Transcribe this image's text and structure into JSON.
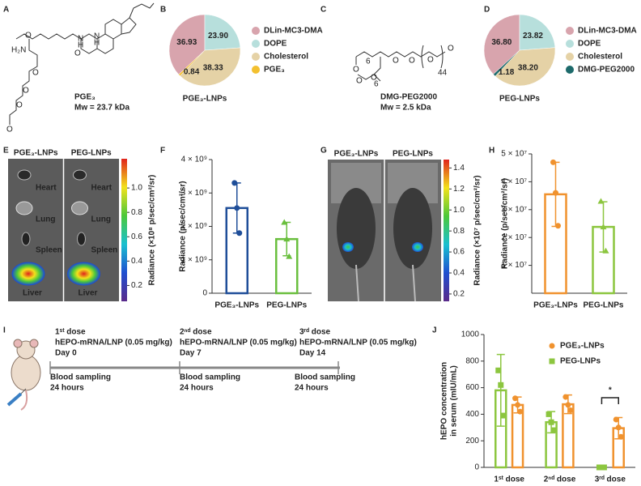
{
  "panels": [
    "A",
    "B",
    "C",
    "D",
    "E",
    "F",
    "G",
    "H",
    "I",
    "J"
  ],
  "structures": [
    {
      "name": "PGE₃",
      "mw": "Mw = 23.7 kDa",
      "atoms": [
        "H₂N",
        "O",
        "N",
        "H",
        "N",
        "H",
        "O",
        "O",
        "O",
        "O",
        "O"
      ]
    },
    {
      "name": "DMG-PEG2000",
      "mw": "Mw = 2.5 kDa",
      "atoms": [
        "O",
        "O",
        "O",
        "O",
        "O",
        "O",
        "O"
      ],
      "subscripts": [
        "6",
        "6",
        "44"
      ]
    }
  ],
  "images": [
    {
      "headers": [
        "PGE₃-LNPs",
        "PEG-LNPs"
      ],
      "organs": [
        "Heart",
        "Lung",
        "Spleen",
        "Liver"
      ],
      "colorbar_label": "Radiance (×10⁸ p/sec/cm²/sr)",
      "colorbar_lim": [
        0.07,
        1.24
      ],
      "colorbar_ticks": [
        0.2,
        0.4,
        0.6,
        0.8,
        {
          "value": 1,
          "label": "1.0"
        }
      ]
    },
    {
      "headers": [
        "PGE₃-LNPs",
        "PEG-LNPs"
      ],
      "colorbar_label": "Radiance (×10⁷ p/sec/cm²/sr)",
      "colorbar_lim": [
        0.13,
        1.48
      ],
      "colorbar_ticks": [
        0.2,
        0.4,
        0.6,
        0.8,
        {
          "value": 1,
          "label": "1.0"
        },
        1.2,
        1.4
      ]
    }
  ],
  "timeline": [
    {
      "dose": "1ˢᵗ dose",
      "treatment": "hEPO-mRNA/LNP (0.05 mg/kg)",
      "day": "Day 0",
      "sampling": "Blood sampling",
      "time": "24 hours"
    },
    {
      "dose": "2ⁿᵈ dose",
      "treatment": "hEPO-mRNA/LNP (0.05 mg/kg)",
      "day": "Day 7",
      "sampling": "Blood sampling",
      "time": "24 hours"
    },
    {
      "dose": "3ʳᵈ dose",
      "treatment": "hEPO-mRNA/LNP (0.05 mg/kg)",
      "day": "Day 14",
      "sampling": "Blood sampling",
      "time": "24 hours"
    }
  ],
  "chart_data": [
    {
      "type": "pie",
      "title": "PGE₃-LNPs",
      "categories": [
        "DLin-MC3-DMA",
        "DOPE",
        "Cholesterol",
        "PGE₃"
      ],
      "values": [
        36.93,
        23.9,
        38.33,
        0.84
      ],
      "value_labels": [
        "36.93",
        "23.90",
        "38.33",
        "0.84"
      ],
      "colors": [
        "#d8a4ad",
        "#b7dfdc",
        "#e5d2a6",
        "#f3c02f"
      ]
    },
    {
      "type": "pie",
      "title": "PEG-LNPs",
      "categories": [
        "DLin-MC3-DMA",
        "DOPE",
        "Cholesterol",
        "DMG-PEG2000"
      ],
      "values": [
        36.8,
        23.82,
        38.2,
        1.18
      ],
      "value_labels": [
        "36.80",
        "23.82",
        "38.20",
        "1.18"
      ],
      "colors": [
        "#d8a4ad",
        "#b7dfdc",
        "#e5d2a6",
        "#1d6a6b"
      ]
    },
    {
      "type": "bar",
      "ylabel": [
        "Radiance (p/sec/cm²/sr)"
      ],
      "categories": [
        "PGE₃-LNPs",
        "PEG-LNPs"
      ],
      "values": [
        2550000000,
        1620000000
      ],
      "errors": [
        750000000,
        500000000
      ],
      "points": [
        [
          3300000000,
          2550000000,
          1800000000
        ],
        [
          2120000000,
          1620000000,
          1100000000
        ]
      ],
      "colors": [
        "#1f4e99",
        "#6abf3e"
      ],
      "markers": [
        "circle",
        "triangle"
      ],
      "ylim": [
        0,
        4000000000
      ],
      "yticks": [
        0,
        {
          "value": 1000000000,
          "label": "1 × 10⁹"
        },
        {
          "value": 2000000000,
          "label": "2 × 10⁹"
        },
        {
          "value": 3000000000,
          "label": "3 × 10⁹"
        },
        {
          "value": 4000000000,
          "label": "4 × 10⁹"
        }
      ]
    },
    {
      "type": "bar",
      "ylabel": [
        "Radiance (p/sec/cm²/sr)"
      ],
      "categories": [
        "PGE₃-LNPs",
        "PEG-LNPs"
      ],
      "values": [
        35500000,
        23800000
      ],
      "errors": [
        11500000,
        9000000
      ],
      "points": [
        [
          47000000,
          36000000,
          24200000
        ],
        [
          33000000,
          23800000,
          15200000
        ]
      ],
      "colors": [
        "#f0922e",
        "#8cc63f"
      ],
      "markers": [
        "circle",
        "triangle"
      ],
      "ylim": [
        0,
        50000000
      ],
      "yticks": [
        {
          "value": 10000000,
          "label": "1 × 10⁷"
        },
        {
          "value": 20000000,
          "label": "2 × 10⁷"
        },
        {
          "value": 30000000,
          "label": "3 × 10⁷"
        },
        {
          "value": 40000000,
          "label": "4 × 10⁷"
        },
        {
          "value": 50000000,
          "label": "5 × 10⁷"
        }
      ]
    },
    {
      "type": "bar",
      "ylabel": [
        "hEPO concentration",
        "in serum (mIU/mL)"
      ],
      "categories": [
        "1ˢᵗ dose",
        "2ⁿᵈ dose",
        "3ʳᵈ dose"
      ],
      "series": [
        {
          "name": "PGE₃-LNPs",
          "color": "#f0922e",
          "marker": "circle",
          "values": [
            470,
            475,
            295
          ],
          "errors": [
            60,
            70,
            80
          ],
          "points": [
            [
              520,
              470,
              420
            ],
            [
              530,
              470,
              430
            ],
            [
              360,
              300,
              230
            ]
          ]
        },
        {
          "name": "PEG-LNPs",
          "color": "#8cc63f",
          "marker": "square",
          "values": [
            580,
            340,
            0
          ],
          "errors": [
            270,
            80,
            10
          ],
          "points": [
            [
              730,
              620,
              390
            ],
            [
              400,
              340,
              280
            ],
            [
              0,
              0,
              0
            ]
          ]
        }
      ],
      "annotation": "*",
      "ylim": [
        0,
        1000
      ],
      "yticks": [
        0,
        200,
        400,
        600,
        800,
        1000
      ]
    }
  ]
}
